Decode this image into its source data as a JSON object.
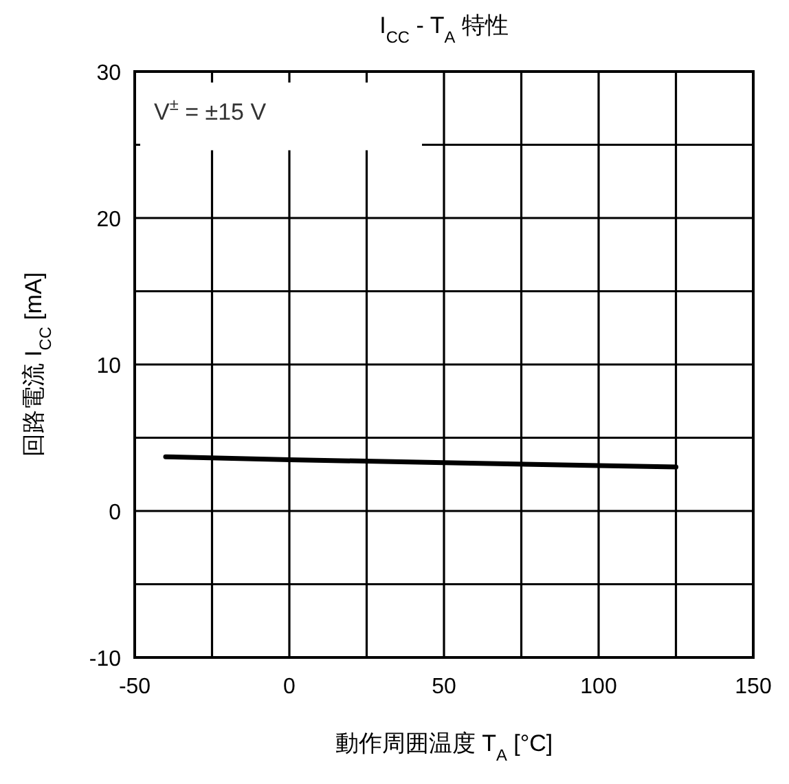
{
  "chart_data": {
    "type": "line",
    "title": "I$_{CC}$ - T$_{A}$ 特性",
    "xlabel": "動作周囲温度  T$_{A}$ [°C]",
    "ylabel": "回路電流 I$_{CC}$ [mA]",
    "annotations": [
      "V$^{±}$ = ±15 V"
    ],
    "x": [
      -40,
      0,
      50,
      100,
      125
    ],
    "series": [
      {
        "color": "#000000",
        "values": [
          3.7,
          3.5,
          3.3,
          3.1,
          3.0
        ]
      }
    ],
    "xlim": [
      -50,
      150
    ],
    "xticks": [
      -50,
      {
        "value": -25,
        "label": null
      },
      0,
      {
        "value": 25,
        "label": null
      },
      50,
      {
        "value": 75,
        "label": null
      },
      100,
      {
        "value": 125,
        "label": null
      },
      150
    ],
    "ylim": [
      -10,
      30
    ],
    "yticks": [
      -10,
      {
        "value": -5,
        "label": null
      },
      0,
      {
        "value": 5,
        "label": null
      },
      10,
      {
        "value": 15,
        "label": null
      },
      20,
      {
        "value": 25,
        "label": null
      },
      30
    ],
    "grid": true,
    "marker": "none",
    "line_style": "solid"
  }
}
